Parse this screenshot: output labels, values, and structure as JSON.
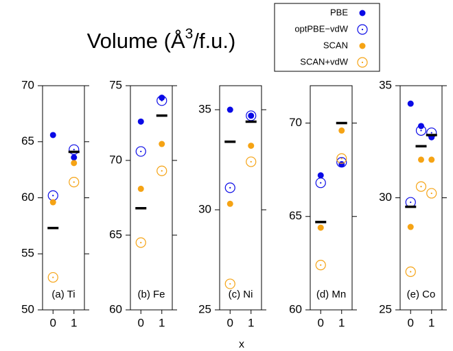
{
  "title": {
    "text": "Volume (Å",
    "superscript": "3",
    "rest": "/f.u.)"
  },
  "xlabel": "x",
  "legend": [
    {
      "name": "PBE",
      "color": "#0a0ae6",
      "marker": "filled"
    },
    {
      "name": "optPBE−vdW",
      "color": "#0a0ae6",
      "marker": "open"
    },
    {
      "name": "SCAN",
      "color": "#f5a314",
      "marker": "filled"
    },
    {
      "name": "SCAN+vdW",
      "color": "#f5a314",
      "marker": "open"
    }
  ],
  "chart_data": [
    {
      "type": "scatter",
      "label": "(a) Ti",
      "x": [
        0,
        1
      ],
      "xlim": [
        -0.5,
        1.5
      ],
      "xticks": [
        0,
        1
      ],
      "ylim": [
        50,
        70
      ],
      "yticks": [
        50,
        55,
        60,
        65,
        70
      ],
      "series": [
        {
          "color": "#0a0ae6",
          "marker": "filled",
          "values": [
            65.6,
            63.6
          ]
        },
        {
          "color": "#0a0ae6",
          "marker": "open",
          "values": [
            60.2,
            64.3
          ]
        },
        {
          "color": "#f5a314",
          "marker": "filled",
          "values": [
            59.6,
            63.1
          ]
        },
        {
          "color": "#f5a314",
          "marker": "open",
          "values": [
            52.9,
            61.4
          ]
        },
        {
          "color": "#000000",
          "marker": "dash",
          "values": [
            57.3,
            64.1
          ]
        }
      ]
    },
    {
      "type": "scatter",
      "label": "(b) Fe",
      "x": [
        0,
        1
      ],
      "xlim": [
        -0.5,
        1.5
      ],
      "xticks": [
        0,
        1
      ],
      "ylim": [
        60,
        75
      ],
      "yticks": [
        60,
        65,
        70,
        75
      ],
      "series": [
        {
          "color": "#0a0ae6",
          "marker": "filled",
          "values": [
            72.6,
            74.2
          ]
        },
        {
          "color": "#0a0ae6",
          "marker": "open",
          "values": [
            70.6,
            74.0
          ]
        },
        {
          "color": "#f5a314",
          "marker": "filled",
          "values": [
            68.1,
            71.1
          ]
        },
        {
          "color": "#f5a314",
          "marker": "open",
          "values": [
            64.5,
            69.3
          ]
        },
        {
          "color": "#000000",
          "marker": "dash",
          "values": [
            66.8,
            73.0
          ]
        }
      ]
    },
    {
      "type": "scatter",
      "label": "(c) Ni",
      "x": [
        0,
        1
      ],
      "xlim": [
        -0.5,
        1.5
      ],
      "xticks": [
        0,
        1
      ],
      "ylim": [
        25,
        36.2
      ],
      "yticks": [
        25,
        30,
        35
      ],
      "series": [
        {
          "color": "#0a0ae6",
          "marker": "filled",
          "values": [
            35.0,
            34.7
          ]
        },
        {
          "color": "#0a0ae6",
          "marker": "open",
          "values": [
            31.1,
            34.7
          ]
        },
        {
          "color": "#f5a314",
          "marker": "filled",
          "values": [
            30.3,
            33.2
          ]
        },
        {
          "color": "#f5a314",
          "marker": "open",
          "values": [
            26.3,
            32.4
          ]
        },
        {
          "color": "#000000",
          "marker": "dash",
          "values": [
            33.4,
            34.4
          ]
        }
      ]
    },
    {
      "type": "scatter",
      "label": "(d) Mn",
      "x": [
        0,
        1
      ],
      "xlim": [
        -0.5,
        1.5
      ],
      "xticks": [
        0,
        1
      ],
      "ylim": [
        60,
        72
      ],
      "yticks": [
        60,
        65,
        70
      ],
      "series": [
        {
          "color": "#0a0ae6",
          "marker": "filled",
          "values": [
            67.2,
            67.8
          ]
        },
        {
          "color": "#0a0ae6",
          "marker": "open",
          "values": [
            66.8,
            67.9
          ]
        },
        {
          "color": "#f5a314",
          "marker": "filled",
          "values": [
            64.4,
            69.6
          ]
        },
        {
          "color": "#f5a314",
          "marker": "open",
          "values": [
            62.4,
            68.1
          ]
        },
        {
          "color": "#000000",
          "marker": "dash",
          "values": [
            64.7,
            70.0
          ]
        }
      ]
    },
    {
      "type": "scatter",
      "label": "(e) Co",
      "x": [
        0,
        0.5,
        1
      ],
      "xlim": [
        -0.5,
        1.5
      ],
      "xticks": [
        0,
        1
      ],
      "ylim": [
        25,
        35
      ],
      "yticks": [
        25,
        30,
        35
      ],
      "series": [
        {
          "color": "#0a0ae6",
          "marker": "filled",
          "values": [
            34.2,
            33.2,
            32.7
          ]
        },
        {
          "color": "#0a0ae6",
          "marker": "open",
          "values": [
            29.8,
            33.0,
            32.9
          ]
        },
        {
          "color": "#f5a314",
          "marker": "filled",
          "values": [
            28.7,
            31.7,
            31.7
          ]
        },
        {
          "color": "#f5a314",
          "marker": "open",
          "values": [
            26.7,
            30.5,
            30.2
          ]
        },
        {
          "color": "#000000",
          "marker": "dash",
          "values": [
            29.6,
            32.3,
            32.8
          ]
        }
      ]
    }
  ]
}
